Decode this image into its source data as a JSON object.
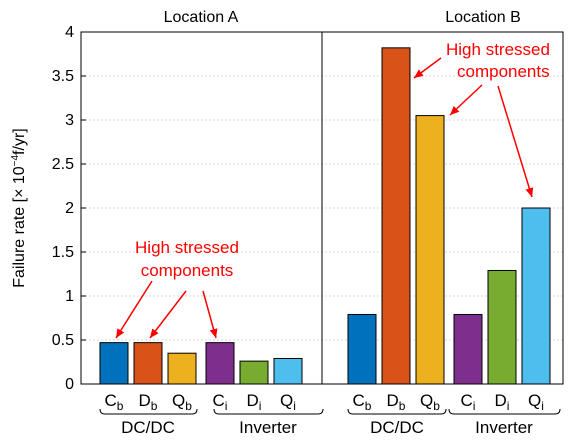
{
  "chart_data": {
    "type": "bar",
    "ylabel": "Failure rate  [× 10",
    "ylabel_exp": "−4",
    "ylabel_unit": "f/yr]",
    "ylim": [
      0,
      4
    ],
    "yticks": [
      "0",
      "0.5",
      "1",
      "1.5",
      "2",
      "2.5",
      "3",
      "3.5",
      "4"
    ],
    "grid": "horizontal dotted",
    "categories": [
      {
        "base": "C",
        "sub": "b"
      },
      {
        "base": "D",
        "sub": "b"
      },
      {
        "base": "Q",
        "sub": "b"
      },
      {
        "base": "C",
        "sub": "i"
      },
      {
        "base": "D",
        "sub": "i"
      },
      {
        "base": "Q",
        "sub": "i"
      }
    ],
    "colors": [
      "#0072bd",
      "#d95319",
      "#edb120",
      "#7e2f8e",
      "#77ac30",
      "#4dbeee"
    ],
    "groups": [
      "DC/DC",
      "Inverter"
    ],
    "panels": [
      {
        "title": "Location A",
        "values": [
          0.47,
          0.47,
          0.35,
          0.47,
          0.26,
          0.29
        ]
      },
      {
        "title": "Location B",
        "values": [
          0.79,
          3.82,
          3.05,
          0.79,
          1.29,
          2.0
        ]
      }
    ],
    "annotations": [
      {
        "lines": [
          "High stressed",
          "components"
        ]
      },
      {
        "lines": [
          "High",
          "stressed",
          "components"
        ]
      }
    ]
  }
}
